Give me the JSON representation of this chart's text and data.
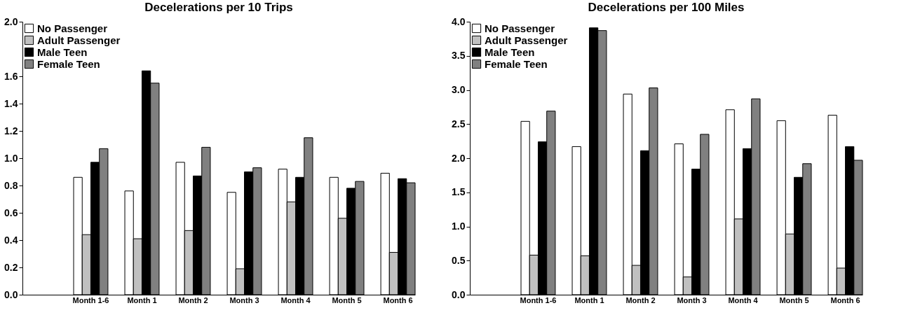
{
  "chart_data": [
    {
      "type": "bar",
      "title": "Decelerations per 10 Trips",
      "categories": [
        null,
        "Month 1-6",
        "Month 1",
        "Month 2",
        "Month 3",
        "Month 4",
        "Month 5",
        "Month 6"
      ],
      "series": [
        {
          "name": "No Passenger",
          "color": "#ffffff",
          "values": [
            null,
            0.86,
            0.76,
            0.97,
            0.75,
            0.92,
            0.86,
            0.89
          ]
        },
        {
          "name": "Adult Passenger",
          "color": "#c0c0c0",
          "values": [
            null,
            0.44,
            0.41,
            0.47,
            0.19,
            0.68,
            0.56,
            0.31
          ]
        },
        {
          "name": "Male Teen",
          "color": "#000000",
          "values": [
            null,
            0.97,
            1.64,
            0.87,
            0.9,
            0.86,
            0.78,
            0.85
          ]
        },
        {
          "name": "Female Teen",
          "color": "#808080",
          "values": [
            null,
            1.07,
            1.55,
            1.08,
            0.93,
            1.15,
            0.83,
            0.82
          ]
        }
      ],
      "ylim": [
        0,
        2
      ],
      "yticks": [
        {
          "value": 0,
          "label": "0.0"
        },
        0.2,
        0.4,
        0.6,
        0.8,
        {
          "value": 1,
          "label": "1.0"
        },
        1.2,
        1.4,
        1.6,
        {
          "value": 2,
          "label": "2.0"
        }
      ],
      "grid": false,
      "legend": "top left"
    },
    {
      "type": "bar",
      "title": "Decelerations per 100 Miles",
      "categories": [
        null,
        "Month 1-6",
        "Month 1",
        "Month 2",
        "Month 3",
        "Month 4",
        "Month 5",
        "Month 6"
      ],
      "series": [
        {
          "name": "No Passenger",
          "color": "#ffffff",
          "values": [
            null,
            2.54,
            2.17,
            2.94,
            2.21,
            2.71,
            2.55,
            2.63
          ]
        },
        {
          "name": "Adult Passenger",
          "color": "#c0c0c0",
          "values": [
            null,
            0.58,
            0.57,
            0.43,
            0.26,
            1.11,
            0.89,
            0.39
          ]
        },
        {
          "name": "Male Teen",
          "color": "#000000",
          "values": [
            null,
            2.24,
            3.91,
            2.11,
            1.84,
            2.14,
            1.72,
            2.17
          ]
        },
        {
          "name": "Female Teen",
          "color": "#808080",
          "values": [
            null,
            2.69,
            3.87,
            3.03,
            2.35,
            2.87,
            1.92,
            1.97
          ]
        }
      ],
      "ylim": [
        0,
        4
      ],
      "yticks": [
        {
          "value": 0,
          "label": "0.0"
        },
        0.5,
        {
          "value": 1,
          "label": "1.0"
        },
        1.5,
        {
          "value": 2,
          "label": "2.0"
        },
        2.5,
        {
          "value": 3,
          "label": "3.0"
        },
        3.5,
        {
          "value": 4,
          "label": "4.0"
        }
      ],
      "grid": false,
      "legend": "top left"
    }
  ]
}
